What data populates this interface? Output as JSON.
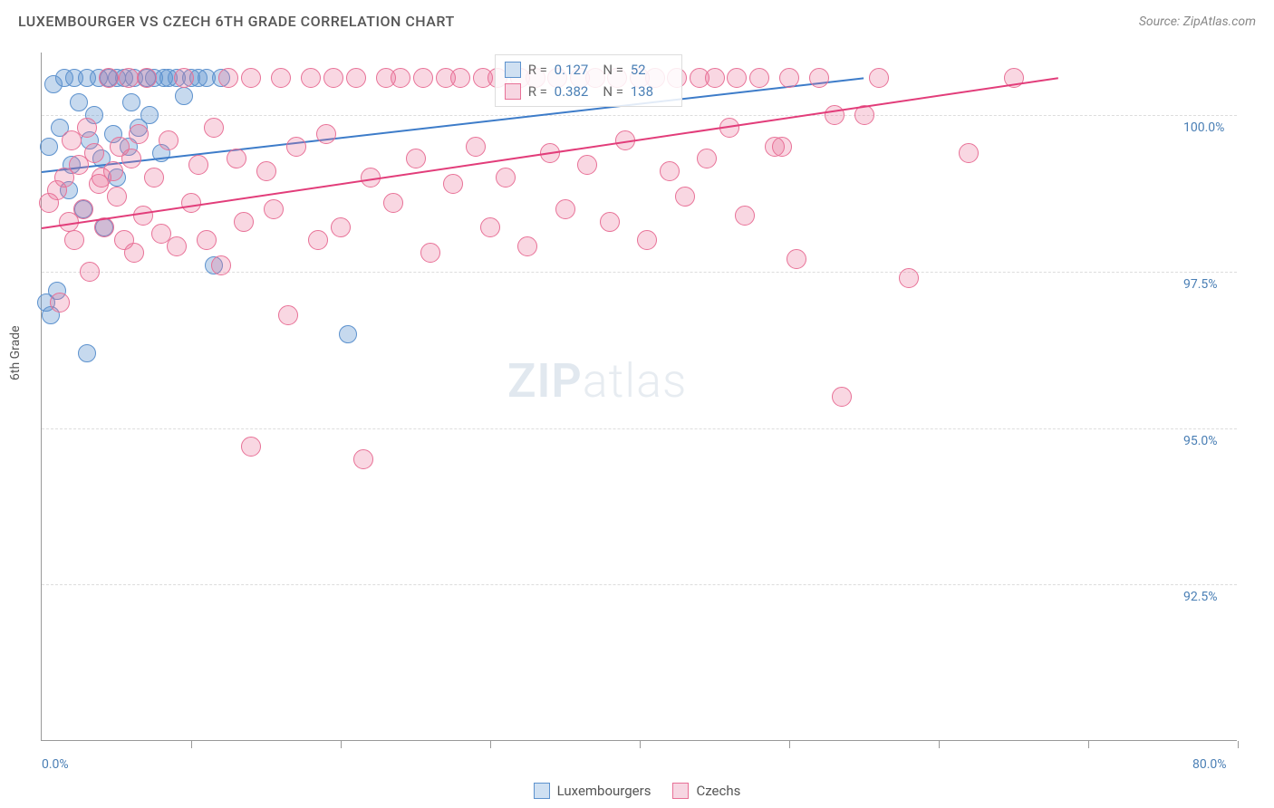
{
  "title": "LUXEMBOURGER VS CZECH 6TH GRADE CORRELATION CHART",
  "source": "Source: ZipAtlas.com",
  "ylabel": "6th Grade",
  "watermark": {
    "part1": "ZIP",
    "part2": "atlas"
  },
  "chart": {
    "type": "scatter",
    "xlim": [
      0,
      80
    ],
    "ylim": [
      90,
      101
    ],
    "background_color": "#ffffff",
    "grid_color": "#dddddd",
    "axis_color": "#999999",
    "ytick_labels": [
      {
        "v": 92.5,
        "label": "92.5%"
      },
      {
        "v": 95.0,
        "label": "95.0%"
      },
      {
        "v": 97.5,
        "label": "97.5%"
      },
      {
        "v": 100.0,
        "label": "100.0%"
      }
    ],
    "xtick_positions": [
      0,
      10,
      20,
      30,
      40,
      50,
      60,
      70,
      80
    ],
    "x_axis_labels": [
      {
        "v": 0,
        "label": "0.0%"
      },
      {
        "v": 80,
        "label": "80.0%"
      }
    ],
    "series": [
      {
        "name": "Luxembourgers",
        "color_fill": "rgba(93,146,206,0.35)",
        "color_stroke": "#5d92ce",
        "swatch_fill": "#cfe0f2",
        "swatch_border": "#5d92ce",
        "marker_radius": 10,
        "R": "0.127",
        "N": "52",
        "trend": {
          "x1": 0,
          "y1": 99.1,
          "x2": 55,
          "y2": 100.6,
          "color": "#3d7cc9"
        },
        "points": [
          [
            0.5,
            99.5
          ],
          [
            0.8,
            100.5
          ],
          [
            1,
            97.2
          ],
          [
            1.2,
            99.8
          ],
          [
            1.5,
            100.6
          ],
          [
            1.8,
            98.8
          ],
          [
            2,
            99.2
          ],
          [
            2.2,
            100.6
          ],
          [
            2.5,
            100.2
          ],
          [
            2.8,
            98.5
          ],
          [
            3,
            100.6
          ],
          [
            3,
            96.2
          ],
          [
            3.2,
            99.6
          ],
          [
            3.5,
            100.0
          ],
          [
            3.8,
            100.6
          ],
          [
            4,
            99.3
          ],
          [
            4.2,
            98.2
          ],
          [
            4.5,
            100.6
          ],
          [
            4.8,
            99.7
          ],
          [
            5,
            100.6
          ],
          [
            5,
            99.0
          ],
          [
            5.5,
            100.6
          ],
          [
            5.8,
            99.5
          ],
          [
            6,
            100.2
          ],
          [
            6.2,
            100.6
          ],
          [
            6.5,
            99.8
          ],
          [
            7,
            100.6
          ],
          [
            7.2,
            100.0
          ],
          [
            7.5,
            100.6
          ],
          [
            8,
            99.4
          ],
          [
            8.2,
            100.6
          ],
          [
            8.5,
            100.6
          ],
          [
            9,
            100.6
          ],
          [
            9.5,
            100.3
          ],
          [
            10,
            100.6
          ],
          [
            10.5,
            100.6
          ],
          [
            11,
            100.6
          ],
          [
            11.5,
            97.6
          ],
          [
            12,
            100.6
          ],
          [
            20.5,
            96.5
          ],
          [
            0.3,
            97.0
          ],
          [
            0.6,
            96.8
          ]
        ]
      },
      {
        "name": "Czechs",
        "color_fill": "rgba(232,113,151,0.28)",
        "color_stroke": "#e87197",
        "swatch_fill": "#f7d6e2",
        "swatch_border": "#e87197",
        "marker_radius": 11,
        "R": "0.382",
        "N": "138",
        "trend": {
          "x1": 0,
          "y1": 98.2,
          "x2": 68,
          "y2": 100.6,
          "color": "#e23d7a"
        },
        "points": [
          [
            0.5,
            98.6
          ],
          [
            1,
            98.8
          ],
          [
            1.2,
            97.0
          ],
          [
            1.5,
            99.0
          ],
          [
            1.8,
            98.3
          ],
          [
            2,
            99.6
          ],
          [
            2.2,
            98.0
          ],
          [
            2.5,
            99.2
          ],
          [
            2.8,
            98.5
          ],
          [
            3,
            99.8
          ],
          [
            3.2,
            97.5
          ],
          [
            3.5,
            99.4
          ],
          [
            3.8,
            98.9
          ],
          [
            4,
            99.0
          ],
          [
            4.2,
            98.2
          ],
          [
            4.5,
            100.6
          ],
          [
            4.8,
            99.1
          ],
          [
            5,
            98.7
          ],
          [
            5.2,
            99.5
          ],
          [
            5.5,
            98.0
          ],
          [
            5.8,
            100.6
          ],
          [
            6,
            99.3
          ],
          [
            6.2,
            97.8
          ],
          [
            6.5,
            99.7
          ],
          [
            6.8,
            98.4
          ],
          [
            7,
            100.6
          ],
          [
            7.5,
            99.0
          ],
          [
            8,
            98.1
          ],
          [
            8.5,
            99.6
          ],
          [
            9,
            97.9
          ],
          [
            9.5,
            100.6
          ],
          [
            10,
            98.6
          ],
          [
            10.5,
            99.2
          ],
          [
            11,
            98.0
          ],
          [
            11.5,
            99.8
          ],
          [
            12,
            97.6
          ],
          [
            12.5,
            100.6
          ],
          [
            13,
            99.3
          ],
          [
            13.5,
            98.3
          ],
          [
            14,
            100.6
          ],
          [
            14,
            94.7
          ],
          [
            15,
            99.1
          ],
          [
            15.5,
            98.5
          ],
          [
            16,
            100.6
          ],
          [
            16.5,
            96.8
          ],
          [
            17,
            99.5
          ],
          [
            18,
            100.6
          ],
          [
            18.5,
            98.0
          ],
          [
            19,
            99.7
          ],
          [
            19.5,
            100.6
          ],
          [
            20,
            98.2
          ],
          [
            21,
            100.6
          ],
          [
            21.5,
            94.5
          ],
          [
            22,
            99.0
          ],
          [
            23,
            100.6
          ],
          [
            23.5,
            98.6
          ],
          [
            24,
            100.6
          ],
          [
            25,
            99.3
          ],
          [
            25.5,
            100.6
          ],
          [
            26,
            97.8
          ],
          [
            27,
            100.6
          ],
          [
            27.5,
            98.9
          ],
          [
            28,
            100.6
          ],
          [
            29,
            99.5
          ],
          [
            29.5,
            100.6
          ],
          [
            30,
            98.2
          ],
          [
            30.5,
            100.6
          ],
          [
            31,
            99.0
          ],
          [
            32,
            100.6
          ],
          [
            32.5,
            97.9
          ],
          [
            33,
            100.6
          ],
          [
            34,
            99.4
          ],
          [
            34.5,
            100.6
          ],
          [
            35,
            98.5
          ],
          [
            36,
            100.6
          ],
          [
            36.5,
            99.2
          ],
          [
            37,
            100.6
          ],
          [
            38,
            98.3
          ],
          [
            38.5,
            100.6
          ],
          [
            39,
            99.6
          ],
          [
            40,
            100.6
          ],
          [
            40.5,
            98.0
          ],
          [
            41,
            100.6
          ],
          [
            42,
            99.1
          ],
          [
            42.5,
            100.6
          ],
          [
            43,
            98.7
          ],
          [
            44,
            100.6
          ],
          [
            44.5,
            99.3
          ],
          [
            45,
            100.6
          ],
          [
            46,
            99.8
          ],
          [
            46.5,
            100.6
          ],
          [
            47,
            98.4
          ],
          [
            48,
            100.6
          ],
          [
            49,
            99.5
          ],
          [
            49.5,
            99.5
          ],
          [
            50,
            100.6
          ],
          [
            50.5,
            97.7
          ],
          [
            52,
            100.6
          ],
          [
            53,
            100.0
          ],
          [
            53.5,
            95.5
          ],
          [
            55,
            100.0
          ],
          [
            56,
            100.6
          ],
          [
            58,
            97.4
          ],
          [
            62,
            99.4
          ],
          [
            65,
            100.6
          ]
        ]
      }
    ]
  },
  "bottom_legend": [
    {
      "label": "Luxembourgers",
      "fill": "#cfe0f2",
      "border": "#5d92ce"
    },
    {
      "label": "Czechs",
      "fill": "#f7d6e2",
      "border": "#e87197"
    }
  ]
}
